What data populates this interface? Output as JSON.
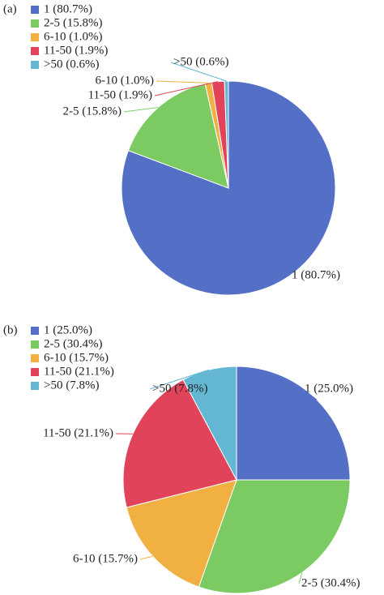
{
  "chart_data": [
    {
      "type": "pie",
      "panel": "(a)",
      "categories": [
        "1 (80.7%)",
        "2-5 (15.8%)",
        "6-10 (1.0%)",
        "11-50 (1.9%)",
        ">50 (0.6%)"
      ],
      "values": [
        80.7,
        15.8,
        1.0,
        1.9,
        0.6
      ],
      "colors": [
        "#5470c6",
        "#7ccb62",
        "#f0b142",
        "#e0435a",
        "#63b7d2"
      ],
      "legend": "upper left"
    },
    {
      "type": "pie",
      "panel": "(b)",
      "categories": [
        "1 (25.0%)",
        "2-5 (30.4%)",
        "6-10 (15.7%)",
        "11-50 (21.1%)",
        ">50 (7.8%)"
      ],
      "values": [
        25.0,
        30.4,
        15.7,
        21.1,
        7.8
      ],
      "colors": [
        "#5470c6",
        "#7ccb62",
        "#f0b142",
        "#e0435a",
        "#63b7d2"
      ],
      "legend": "upper left"
    }
  ]
}
